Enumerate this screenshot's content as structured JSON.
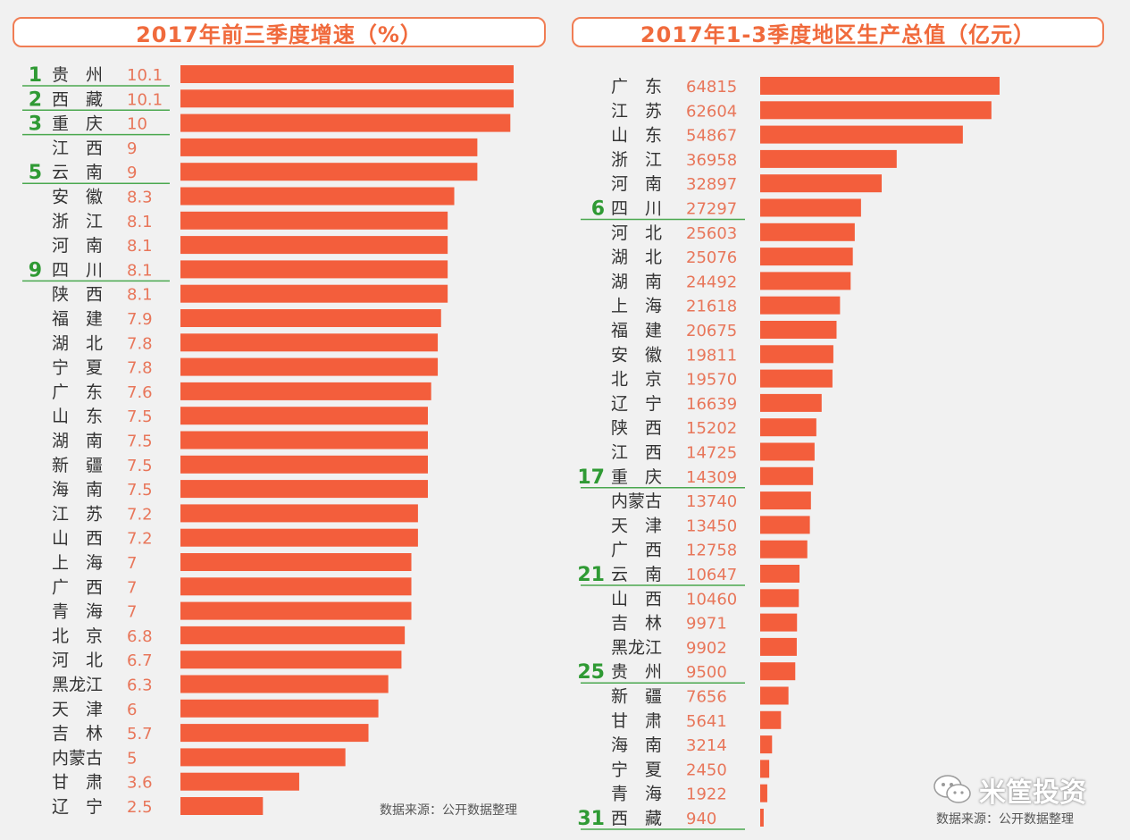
{
  "colors": {
    "bar": "#f35e3c",
    "value_text": "#e8765a",
    "rank_text": "#2f9a34",
    "label_text": "#333333",
    "underline": "#4aa84f",
    "title_text": "#f06a3c",
    "title_border": "#f07d54"
  },
  "watermark": {
    "text": "米筐投资",
    "icon": "wechat-icon"
  },
  "chart_data": [
    {
      "type": "bar",
      "orientation": "horizontal",
      "title": "2017年前三季度增速（%）",
      "source": "数据来源：公开数据整理",
      "xlim": [
        0,
        10.1
      ],
      "categories": [
        "贵　州",
        "西　藏",
        "重　庆",
        "江　西",
        "云　南",
        "安　徽",
        "浙　江",
        "河　南",
        "四　川",
        "陕　西",
        "福　建",
        "湖　北",
        "宁　夏",
        "广　东",
        "山　东",
        "湖　南",
        "新　疆",
        "海　南",
        "江　苏",
        "山　西",
        "上　海",
        "广　西",
        "青　海",
        "北　京",
        "河　北",
        "黑龙江",
        "天　津",
        "吉　林",
        "内蒙古",
        "甘　肃",
        "辽　宁"
      ],
      "values": [
        10.1,
        10.1,
        10,
        9,
        9,
        8.3,
        8.1,
        8.1,
        8.1,
        8.1,
        7.9,
        7.8,
        7.8,
        7.6,
        7.5,
        7.5,
        7.5,
        7.5,
        7.2,
        7.2,
        7,
        7,
        7,
        6.8,
        6.7,
        6.3,
        6,
        5.7,
        5,
        3.6,
        2.5
      ],
      "value_labels": [
        "10.1",
        "10.1",
        "10",
        "9",
        "9",
        "8.3",
        "8.1",
        "8.1",
        "8.1",
        "8.1",
        "7.9",
        "7.8",
        "7.8",
        "7.6",
        "7.5",
        "7.5",
        "7.5",
        "7.5",
        "7.2",
        "7.2",
        "7",
        "7",
        "7",
        "6.8",
        "6.7",
        "6.3",
        "6",
        "5.7",
        "5",
        "3.6",
        "2.5"
      ],
      "rank_labels": {
        "0": "1",
        "1": "2",
        "2": "3",
        "4": "5",
        "8": "9"
      }
    },
    {
      "type": "bar",
      "orientation": "horizontal",
      "title": "2017年1-3季度地区生产总值（亿元）",
      "source": "数据来源：公开数据整理",
      "xlim": [
        0,
        64815
      ],
      "categories": [
        "广　东",
        "江　苏",
        "山　东",
        "浙　江",
        "河　南",
        "四　川",
        "河　北",
        "湖　北",
        "湖　南",
        "上　海",
        "福　建",
        "安　徽",
        "北　京",
        "辽　宁",
        "陕　西",
        "江　西",
        "重　庆",
        "内蒙古",
        "天　津",
        "广　西",
        "云　南",
        "山　西",
        "吉　林",
        "黑龙江",
        "贵　州",
        "新　疆",
        "甘　肃",
        "海　南",
        "宁　夏",
        "青　海",
        "西　藏"
      ],
      "values": [
        64815,
        62604,
        54867,
        36958,
        32897,
        27297,
        25603,
        25076,
        24492,
        21618,
        20675,
        19811,
        19570,
        16639,
        15202,
        14725,
        14309,
        13740,
        13450,
        12758,
        10647,
        10460,
        9971,
        9902,
        9500,
        7656,
        5641,
        3214,
        2450,
        1922,
        940
      ],
      "value_labels": [
        "64815",
        "62604",
        "54867",
        "36958",
        "32897",
        "27297",
        "25603",
        "25076",
        "24492",
        "21618",
        "20675",
        "19811",
        "19570",
        "16639",
        "15202",
        "14725",
        "14309",
        "13740",
        "13450",
        "12758",
        "10647",
        "10460",
        "9971",
        "9902",
        "9500",
        "7656",
        "5641",
        "3214",
        "2450",
        "1922",
        "940"
      ],
      "rank_labels": {
        "5": "6",
        "16": "17",
        "20": "21",
        "24": "25",
        "30": "31"
      }
    }
  ]
}
